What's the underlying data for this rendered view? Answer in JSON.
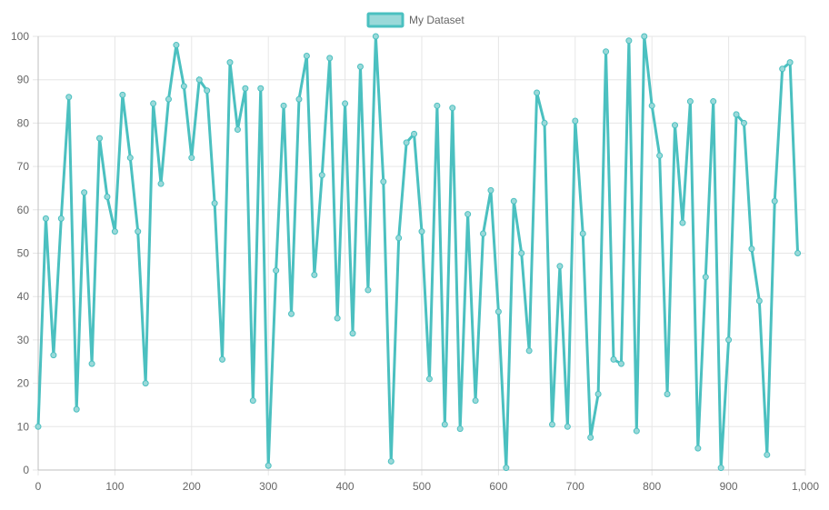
{
  "colors": {
    "line": "#4bc0c0",
    "point_fill": "#9ad9d9",
    "grid": "#e6e6e6",
    "axis": "#bfbfbf",
    "text": "#666666"
  },
  "chart_data": {
    "type": "line",
    "legend": {
      "position": "top-center"
    },
    "grid": true,
    "xlim": [
      0,
      1000
    ],
    "ylim": [
      0,
      100
    ],
    "x_ticks": [
      "0",
      "100",
      "200",
      "300",
      "400",
      "500",
      "600",
      "700",
      "800",
      "900",
      "1,000"
    ],
    "y_ticks": [
      "0",
      "10",
      "20",
      "30",
      "40",
      "50",
      "60",
      "70",
      "80",
      "90",
      "100"
    ],
    "series": [
      {
        "name": "My Dataset",
        "x": [
          0,
          10,
          20,
          30,
          40,
          50,
          60,
          70,
          80,
          90,
          100,
          110,
          120,
          130,
          140,
          150,
          160,
          170,
          180,
          190,
          200,
          210,
          220,
          230,
          240,
          250,
          260,
          270,
          280,
          290,
          300,
          310,
          320,
          330,
          340,
          350,
          360,
          370,
          380,
          390,
          400,
          410,
          420,
          430,
          440,
          450,
          460,
          470,
          480,
          490,
          500,
          510,
          520,
          530,
          540,
          550,
          560,
          570,
          580,
          590,
          600,
          610,
          620,
          630,
          640,
          650,
          660,
          670,
          680,
          690,
          700,
          710,
          720,
          730,
          740,
          750,
          760,
          770,
          780,
          790,
          800,
          810,
          820,
          830,
          840,
          850,
          860,
          870,
          880,
          890,
          900,
          910,
          920,
          930,
          940,
          950,
          960,
          970,
          980,
          990
        ],
        "y": [
          10,
          58,
          26.5,
          58,
          86,
          14,
          64,
          24.5,
          76.5,
          63,
          55,
          86.5,
          72,
          55,
          20,
          84.5,
          66,
          85.5,
          98,
          88.5,
          72,
          90,
          87.5,
          61.5,
          25.5,
          94,
          78.5,
          88,
          16,
          88,
          1,
          46,
          84,
          36,
          85.5,
          95.5,
          45,
          68,
          95,
          35,
          84.5,
          31.5,
          93,
          41.5,
          100,
          66.5,
          2,
          53.5,
          75.5,
          77.5,
          55,
          21,
          84,
          10.5,
          83.5,
          9.5,
          59,
          16,
          54.5,
          64.5,
          36.5,
          0.5,
          62,
          50,
          27.5,
          87,
          80,
          10.5,
          47,
          10,
          80.5,
          54.5,
          7.5,
          17.5,
          96.5,
          25.5,
          24.5,
          99,
          9,
          100,
          84,
          72.5,
          17.5,
          79.5,
          57,
          85,
          5,
          44.5,
          85,
          0.5,
          30,
          82,
          80,
          51,
          39,
          3.5,
          62,
          92.5,
          94,
          50
        ]
      }
    ]
  }
}
